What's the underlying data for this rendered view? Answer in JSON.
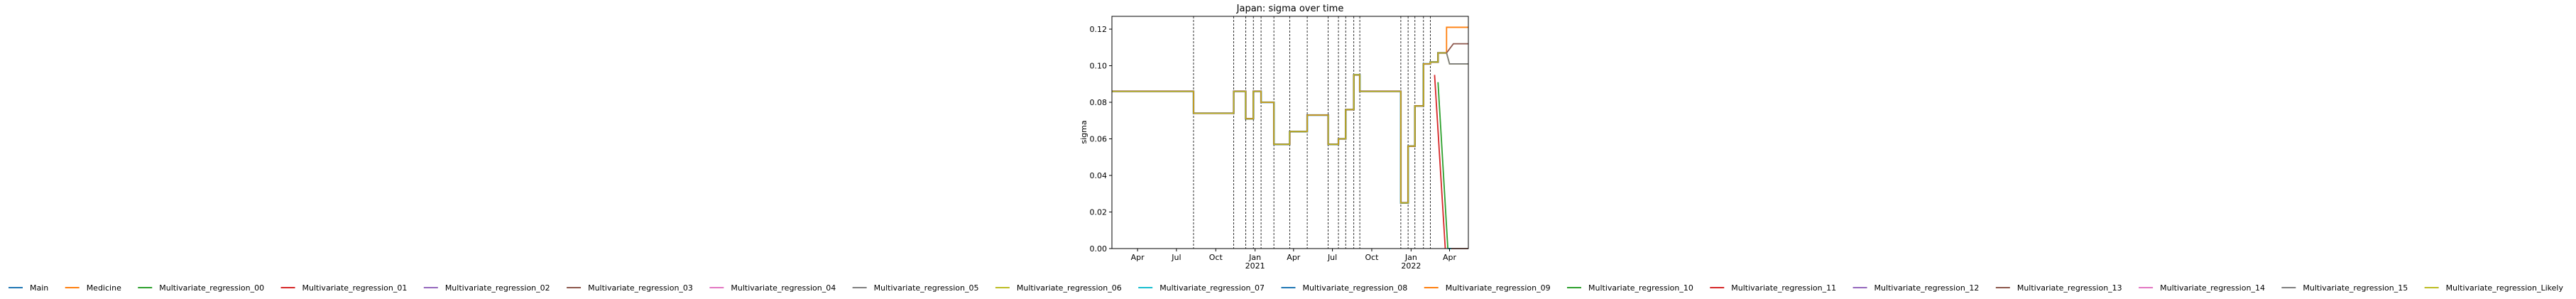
{
  "chart_data": {
    "type": "line",
    "title": "Japan: sigma over time",
    "xlabel": "",
    "ylabel": "sigma",
    "x_range": [
      "2020-02-01",
      "2022-05-15"
    ],
    "ylim": [
      0.0,
      0.127
    ],
    "y_ticks": [
      0.0,
      0.02,
      0.04,
      0.06,
      0.08,
      0.1,
      0.12
    ],
    "y_tick_labels": [
      "0.00",
      "0.02",
      "0.04",
      "0.06",
      "0.08",
      "0.10",
      "0.12"
    ],
    "x_ticks": [
      {
        "date": "2020-04-01",
        "label": "Apr"
      },
      {
        "date": "2020-07-01",
        "label": "Jul"
      },
      {
        "date": "2020-10-01",
        "label": "Oct"
      },
      {
        "date": "2021-01-01",
        "label": "Jan\n2021"
      },
      {
        "date": "2021-04-01",
        "label": "Apr"
      },
      {
        "date": "2021-07-01",
        "label": "Jul"
      },
      {
        "date": "2021-10-01",
        "label": "Oct"
      },
      {
        "date": "2022-01-01",
        "label": "Jan\n2022"
      },
      {
        "date": "2022-04-01",
        "label": "Apr"
      }
    ],
    "change_points": [
      "2020-08-10",
      "2020-11-12",
      "2020-12-10",
      "2020-12-28",
      "2021-01-15",
      "2021-02-14",
      "2021-03-23",
      "2021-05-03",
      "2021-06-21",
      "2021-07-15",
      "2021-08-01",
      "2021-08-20",
      "2021-09-03",
      "2021-12-08",
      "2021-12-25",
      "2022-01-10",
      "2022-01-30",
      "2022-02-15"
    ],
    "legend_position": "bottom",
    "legend": [
      {
        "name": "Main",
        "color": "#1f77b4"
      },
      {
        "name": "Medicine",
        "color": "#ff7f0e"
      },
      {
        "name": "Multivariate_regression_00",
        "color": "#2ca02c"
      },
      {
        "name": "Multivariate_regression_01",
        "color": "#d62728"
      },
      {
        "name": "Multivariate_regression_02",
        "color": "#9467bd"
      },
      {
        "name": "Multivariate_regression_03",
        "color": "#8c564b"
      },
      {
        "name": "Multivariate_regression_04",
        "color": "#e377c2"
      },
      {
        "name": "Multivariate_regression_05",
        "color": "#7f7f7f"
      },
      {
        "name": "Multivariate_regression_06",
        "color": "#bcbd22"
      },
      {
        "name": "Multivariate_regression_07",
        "color": "#17becf"
      },
      {
        "name": "Multivariate_regression_08",
        "color": "#1f77b4"
      },
      {
        "name": "Multivariate_regression_09",
        "color": "#ff7f0e"
      },
      {
        "name": "Multivariate_regression_10",
        "color": "#2ca02c"
      },
      {
        "name": "Multivariate_regression_11",
        "color": "#d62728"
      },
      {
        "name": "Multivariate_regression_12",
        "color": "#9467bd"
      },
      {
        "name": "Multivariate_regression_13",
        "color": "#8c564b"
      },
      {
        "name": "Multivariate_regression_14",
        "color": "#e377c2"
      },
      {
        "name": "Multivariate_regression_15",
        "color": "#7f7f7f"
      },
      {
        "name": "Multivariate_regression_Likely",
        "color": "#bcbd22"
      }
    ],
    "common_series": {
      "x": [
        "2020-02-01",
        "2020-08-10",
        "2020-08-10",
        "2020-11-12",
        "2020-11-12",
        "2020-12-10",
        "2020-12-10",
        "2020-12-28",
        "2020-12-28",
        "2021-01-15",
        "2021-01-15",
        "2021-02-14",
        "2021-02-14",
        "2021-03-23",
        "2021-03-23",
        "2021-05-03",
        "2021-05-03",
        "2021-06-21",
        "2021-06-21",
        "2021-07-15",
        "2021-07-15",
        "2021-08-01",
        "2021-08-01",
        "2021-08-20",
        "2021-08-20",
        "2021-09-03",
        "2021-09-03",
        "2021-12-08",
        "2021-12-08",
        "2021-12-25",
        "2021-12-25",
        "2022-01-10",
        "2022-01-10",
        "2022-01-30",
        "2022-01-30",
        "2022-02-15",
        "2022-02-15",
        "2022-03-05",
        "2022-03-05",
        "2022-03-25"
      ],
      "y": [
        0.086,
        0.086,
        0.074,
        0.074,
        0.086,
        0.086,
        0.071,
        0.071,
        0.086,
        0.086,
        0.08,
        0.08,
        0.057,
        0.057,
        0.064,
        0.064,
        0.073,
        0.073,
        0.057,
        0.057,
        0.06,
        0.06,
        0.076,
        0.076,
        0.095,
        0.095,
        0.086,
        0.086,
        0.025,
        0.025,
        0.056,
        0.056,
        0.078,
        0.078,
        0.101,
        0.101,
        0.102,
        0.102,
        0.107,
        0.107
      ]
    },
    "series": [
      {
        "name": "Medicine",
        "x": [
          "2022-03-25",
          "2022-03-25",
          "2022-05-15"
        ],
        "y": [
          0.107,
          0.121,
          0.121
        ]
      },
      {
        "name": "Multivariate_regression_13",
        "x": [
          "2022-03-25",
          "2022-04-10",
          "2022-05-15"
        ],
        "y": [
          0.107,
          0.112,
          0.112
        ]
      },
      {
        "name": "Multivariate_regression_Likely",
        "x": [
          "2022-03-25",
          "2022-04-01",
          "2022-05-15"
        ],
        "y": [
          0.107,
          0.101,
          0.101
        ]
      },
      {
        "name": "Multivariate_regression_05",
        "x": [
          "2022-03-25",
          "2022-04-01",
          "2022-05-15"
        ],
        "y": [
          0.107,
          0.101,
          0.101
        ]
      },
      {
        "name": "Multivariate_regression_00",
        "x": [
          "2022-03-05",
          "2022-03-28"
        ],
        "y": [
          0.091,
          0.0
        ]
      },
      {
        "name": "Multivariate_regression_01",
        "x": [
          "2022-02-25",
          "2022-03-22"
        ],
        "y": [
          0.095,
          0.0
        ]
      },
      {
        "name": "Multivariate_regression_03",
        "x": [
          "2022-03-28",
          "2022-05-15"
        ],
        "y": [
          0.0,
          0.0
        ]
      },
      {
        "name": "Multivariate_regression_07",
        "x": [
          "2022-03-28",
          "2022-04-05"
        ],
        "y": [
          0.0,
          0.0
        ]
      }
    ]
  }
}
